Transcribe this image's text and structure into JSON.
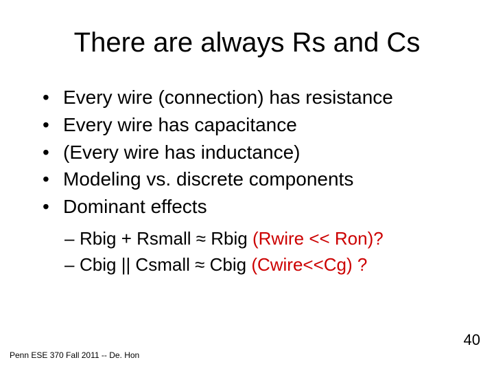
{
  "title": "There are always Rs and Cs",
  "bullets": [
    "Every wire (connection) has resistance",
    "Every wire has capacitance",
    "(Every wire has inductance)",
    "Modeling vs. discrete components",
    "Dominant effects"
  ],
  "sub": [
    {
      "prefix": "Rbig + Rsmall ≈ Rbig",
      "spacer": "    ",
      "red": "(Rwire << Ron)?"
    },
    {
      "prefix": "Cbig || Csmall ≈ Cbig",
      "spacer": "  ",
      "red": "(Cwire<<Cg) ?"
    }
  ],
  "footer": "Penn ESE 370 Fall 2011 -- De. Hon",
  "page": "40",
  "colors": {
    "text": "#000000",
    "accent_red": "#cc0000",
    "background": "#ffffff"
  },
  "typography": {
    "title_fontsize_pt": 40,
    "bullet_fontsize_pt": 28,
    "subbullet_fontsize_pt": 26,
    "footer_fontsize_pt": 12,
    "pagenum_fontsize_pt": 22,
    "font_family": "Arial"
  }
}
